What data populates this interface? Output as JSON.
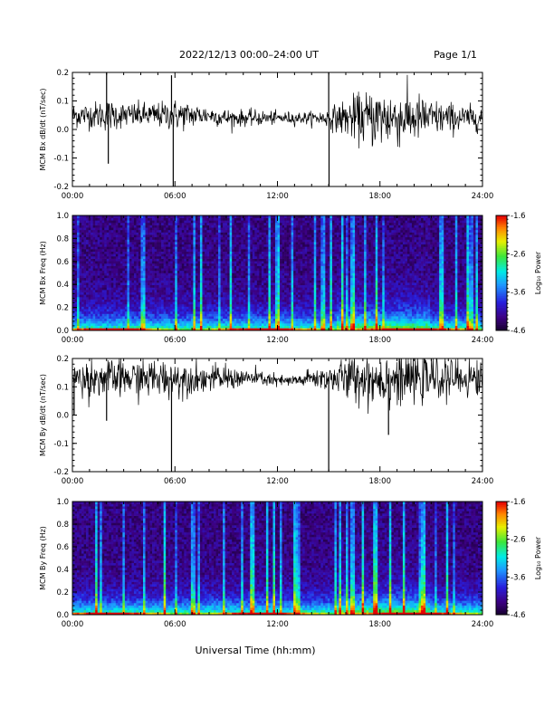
{
  "header": {
    "title": "2022/12/13  00:00–24:00 UT",
    "page": "Page 1/1"
  },
  "xaxis": {
    "title": "Universal Time (hh:mm)",
    "ticks": [
      "00:00",
      "06:00",
      "12:00",
      "18:00",
      "24:00"
    ],
    "range_hours": [
      0,
      24
    ]
  },
  "colorbar": {
    "label": "Log₁₀ Power",
    "ticks": [
      "-1.6",
      "-2.6",
      "-3.6",
      "-4.6"
    ],
    "range": [
      -4.6,
      -1.6
    ]
  },
  "chart_data": [
    {
      "type": "line",
      "panel": "bx-timeseries",
      "ylabel": "MCM Bx dB/dt (nT/sec)",
      "ylim": [
        -0.2,
        0.2
      ],
      "yticks": [
        "-0.2",
        "-0.1",
        "0.0",
        "0.1",
        "0.2"
      ],
      "x_hours": [
        0,
        1,
        2,
        3,
        4,
        5,
        6,
        7,
        8,
        9,
        10,
        11,
        12,
        13,
        14,
        15,
        16,
        17,
        18,
        19,
        20,
        21,
        22,
        23,
        24
      ],
      "center": [
        0.05,
        0.05,
        0.05,
        0.05,
        0.05,
        0.05,
        0.05,
        0.05,
        0.05,
        0.04,
        0.04,
        0.04,
        0.04,
        0.04,
        0.04,
        0.04,
        0.04,
        0.04,
        0.04,
        0.04,
        0.04,
        0.04,
        0.04,
        0.04,
        0.04
      ],
      "spread": [
        0.04,
        0.04,
        0.05,
        0.04,
        0.04,
        0.04,
        0.05,
        0.04,
        0.03,
        0.03,
        0.025,
        0.025,
        0.02,
        0.02,
        0.02,
        0.03,
        0.06,
        0.08,
        0.1,
        0.09,
        0.08,
        0.06,
        0.05,
        0.04,
        0.04
      ],
      "spikes": [
        {
          "x": 2.0,
          "y": 0.2
        },
        {
          "x": 2.1,
          "y": -0.12
        },
        {
          "x": 5.8,
          "y": 0.19
        },
        {
          "x": 5.9,
          "y": -0.2
        },
        {
          "x": 15.0,
          "y": 0.21
        },
        {
          "x": 15.02,
          "y": -0.2
        }
      ]
    },
    {
      "type": "heatmap",
      "panel": "bx-spectrogram",
      "ylabel": "MCM Bx Freq (Hz)",
      "ylim": [
        0.0,
        1.0
      ],
      "yticks": [
        "0.0",
        "0.2",
        "0.4",
        "0.6",
        "0.8",
        "1.0"
      ],
      "zlim": [
        -4.6,
        -1.6
      ]
    },
    {
      "type": "line",
      "panel": "by-timeseries",
      "ylabel": "MCM By dB/dt (nT/sec)",
      "ylim": [
        -0.2,
        0.2
      ],
      "yticks": [
        "-0.2",
        "-0.1",
        "0.0",
        "0.1",
        "0.2"
      ],
      "x_hours": [
        0,
        1,
        2,
        3,
        4,
        5,
        6,
        7,
        8,
        9,
        10,
        11,
        12,
        13,
        14,
        15,
        16,
        17,
        18,
        19,
        20,
        21,
        22,
        23,
        24
      ],
      "center": [
        0.13,
        0.13,
        0.13,
        0.13,
        0.13,
        0.13,
        0.13,
        0.13,
        0.13,
        0.13,
        0.13,
        0.13,
        0.12,
        0.12,
        0.13,
        0.13,
        0.13,
        0.13,
        0.13,
        0.13,
        0.13,
        0.13,
        0.13,
        0.13,
        0.13
      ],
      "spread": [
        0.05,
        0.06,
        0.06,
        0.06,
        0.06,
        0.06,
        0.06,
        0.05,
        0.04,
        0.04,
        0.03,
        0.025,
        0.02,
        0.02,
        0.03,
        0.04,
        0.07,
        0.08,
        0.09,
        0.09,
        0.08,
        0.07,
        0.06,
        0.06,
        0.06
      ],
      "spikes": [
        {
          "x": 0.1,
          "y": 0.0
        },
        {
          "x": 2.0,
          "y": -0.02
        },
        {
          "x": 5.8,
          "y": -0.2
        },
        {
          "x": 15.0,
          "y": -0.2
        },
        {
          "x": 18.5,
          "y": -0.07
        }
      ]
    },
    {
      "type": "heatmap",
      "panel": "by-spectrogram",
      "ylabel": "MCM By Freq (Hz)",
      "ylim": [
        0.0,
        1.0
      ],
      "yticks": [
        "0.0",
        "0.2",
        "0.4",
        "0.6",
        "0.8",
        "1.0"
      ],
      "zlim": [
        -4.6,
        -1.6
      ]
    }
  ]
}
